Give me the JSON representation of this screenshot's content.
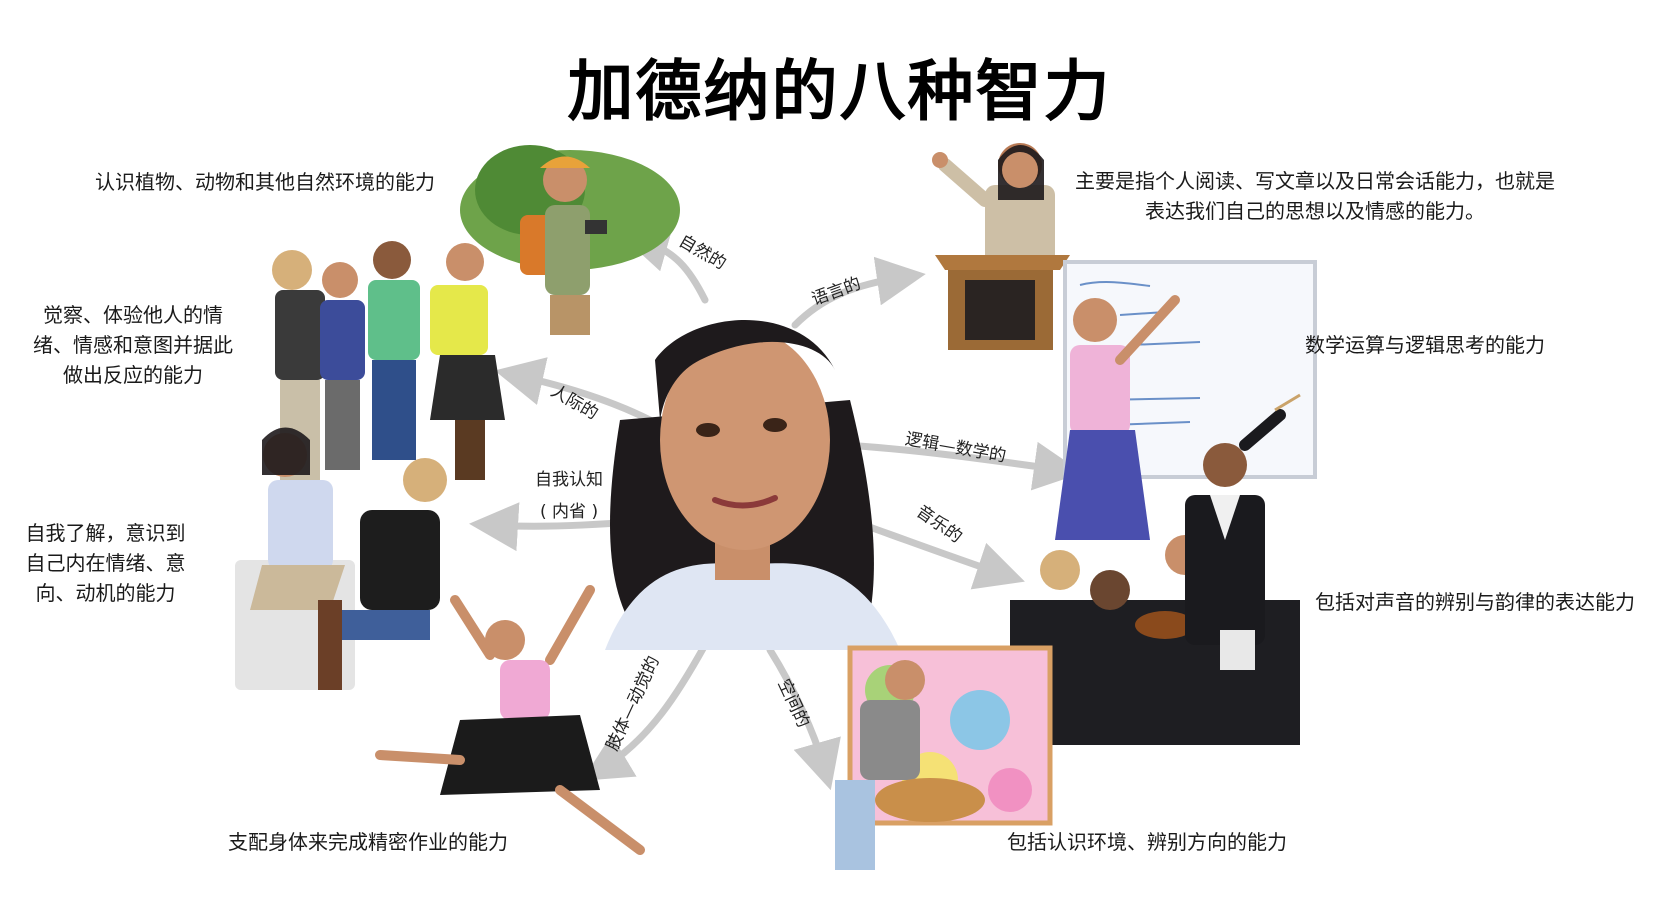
{
  "title": "加德纳的八种智力",
  "intelligences": [
    {
      "arrow_label": "自然的",
      "description": "认识植物、动物和其他自然环境的能力"
    },
    {
      "arrow_label": "语言的",
      "description": "主要是指个人阅读、写文章以及日常会话能力，也就是表达我们自己的思想以及情感的能力。"
    },
    {
      "arrow_label": "人际的",
      "description": "觉察、体验他人的情绪、情感和意图并据此做出反应的能力"
    },
    {
      "arrow_label": "逻辑—数学的",
      "description": "数学运算与逻辑思考的能力"
    },
    {
      "arrow_label_line1": "自我认知",
      "arrow_label_line2": "( 内省 )",
      "description": "自我了解，意识到自己内在情绪、意向、动机的能力"
    },
    {
      "arrow_label": "音乐的",
      "description": "包括对声音的辨别与韵律的表达能力"
    },
    {
      "arrow_label": "肢体—动觉的",
      "description": "支配身体来完成精密作业的能力"
    },
    {
      "arrow_label": "空间的",
      "description": "包括认识环境、辨别方向的能力"
    }
  ],
  "colors": {
    "arrow": "#c8c8c8",
    "skin": "#c98f6a",
    "hair": "#1e1a1c"
  }
}
